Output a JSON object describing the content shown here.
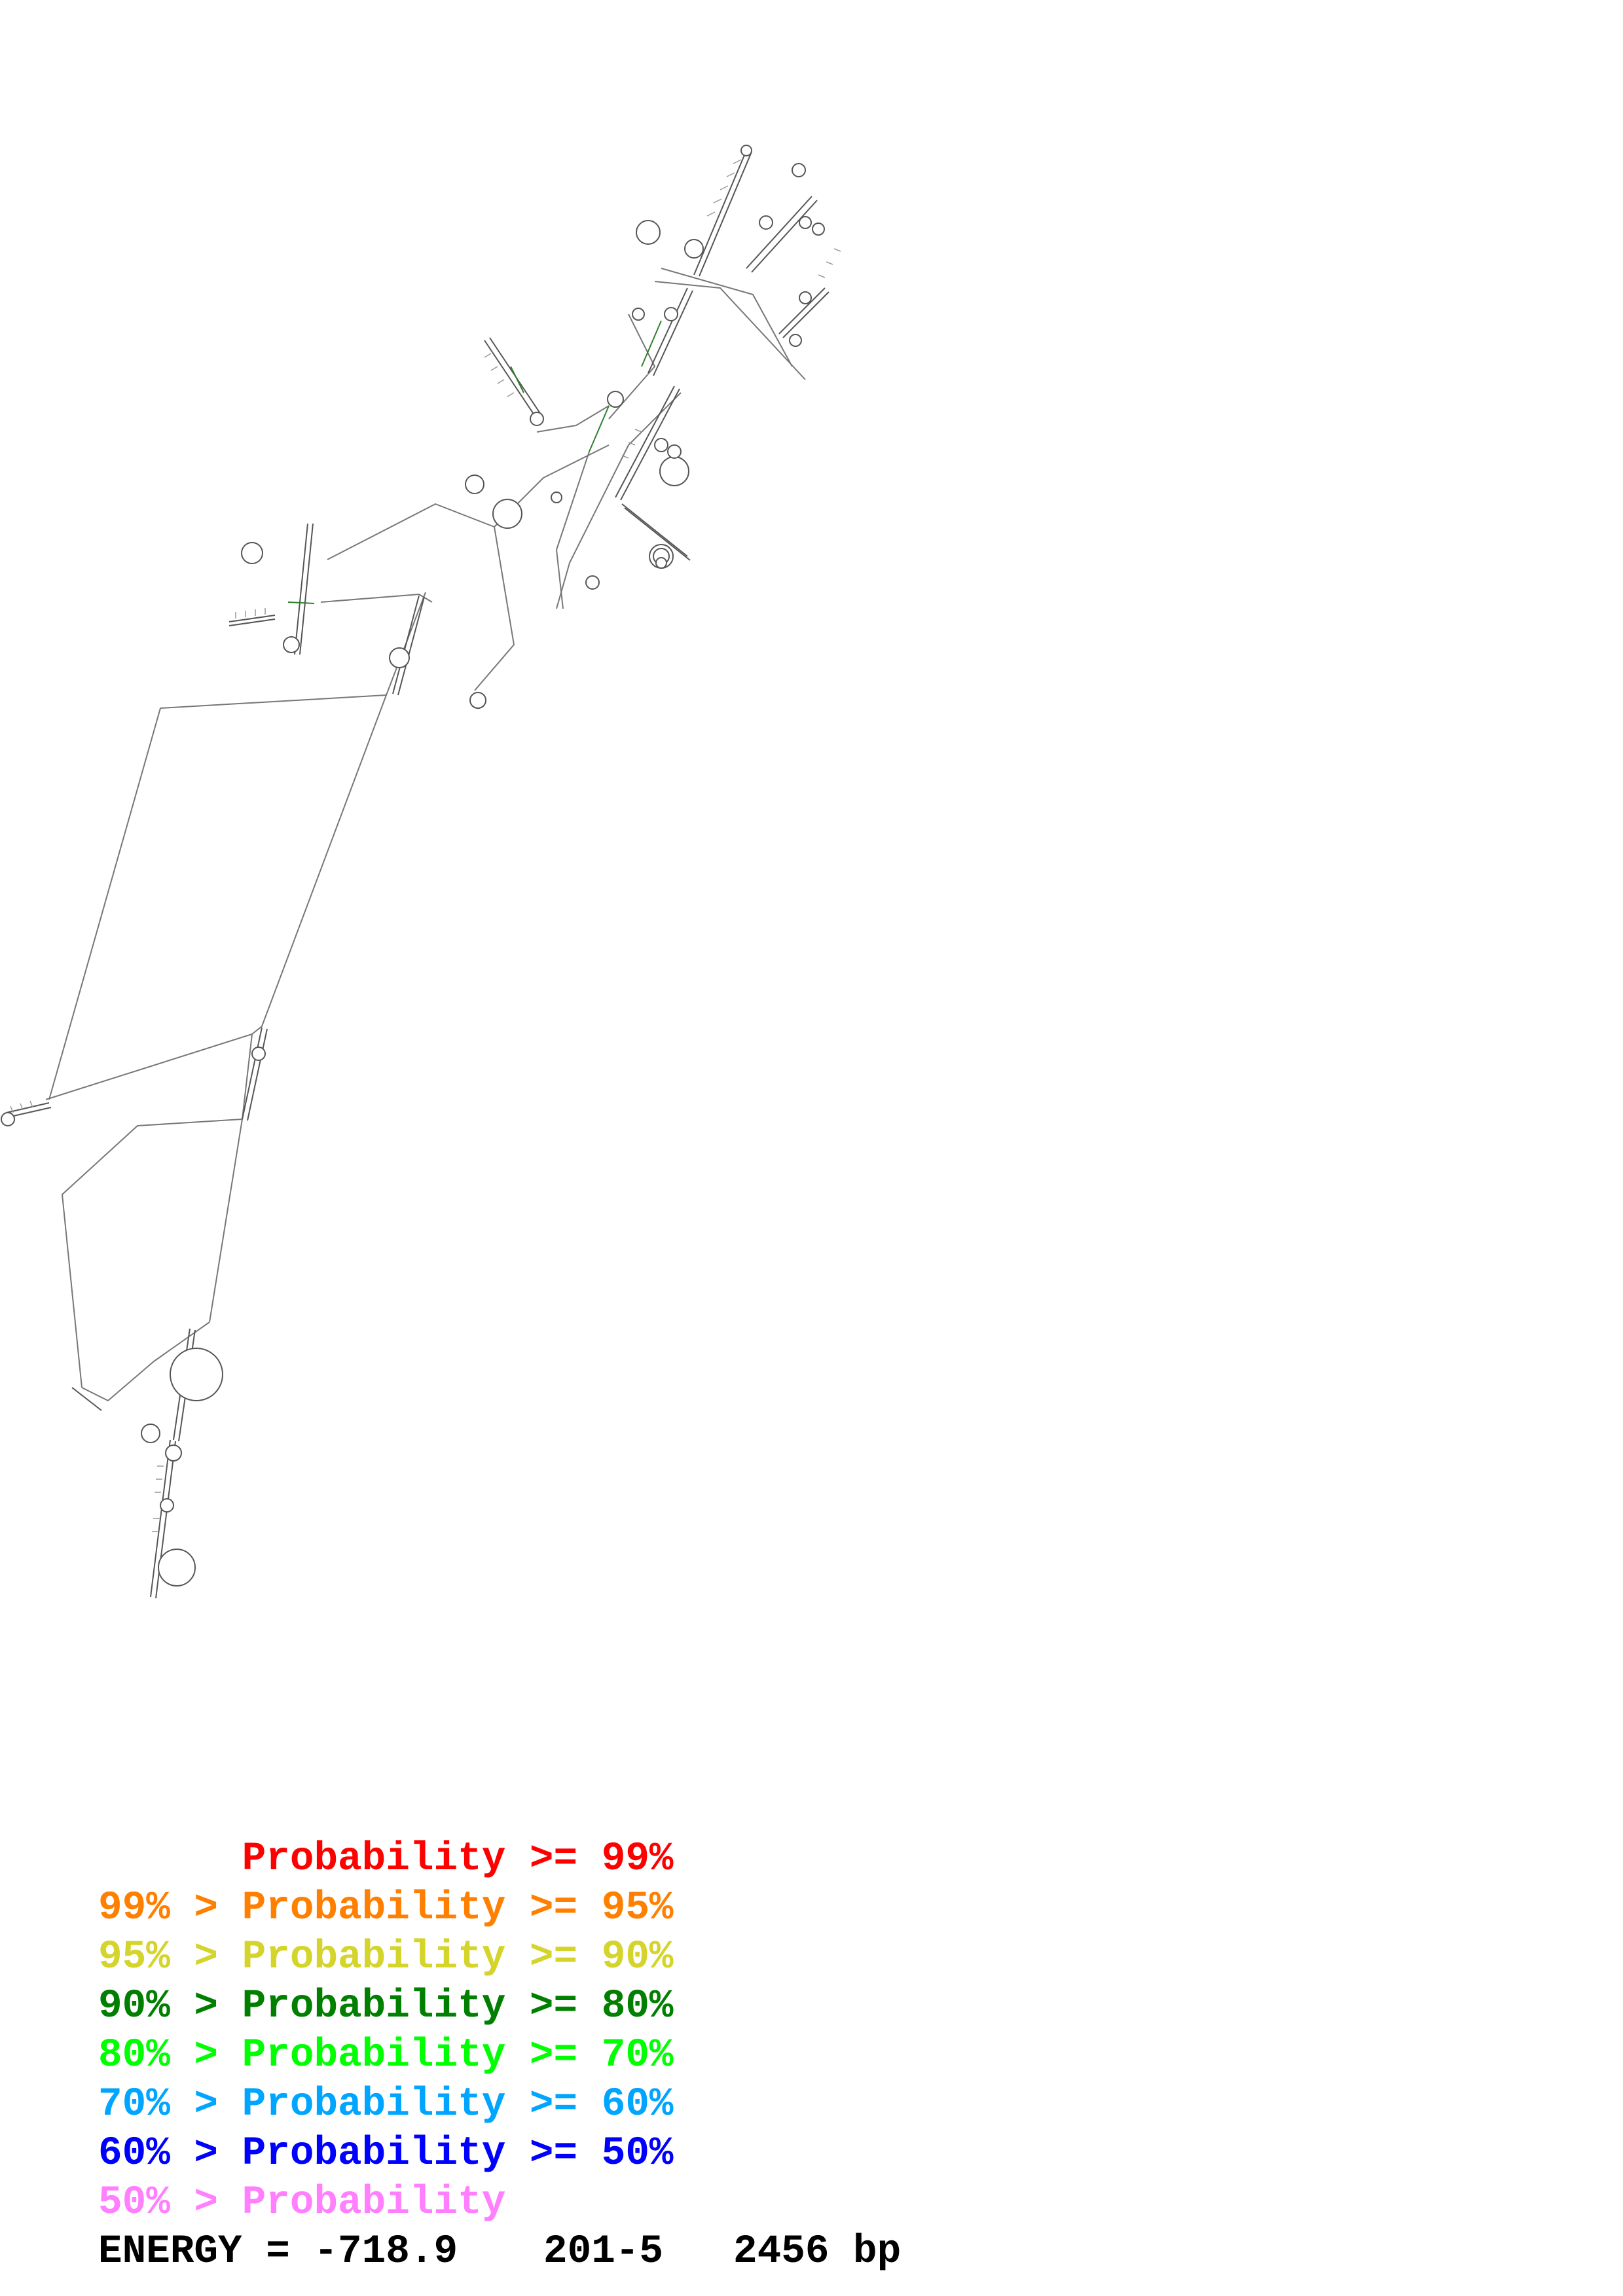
{
  "diagram": {
    "legend": [
      {
        "text": "      Probability >= 99%",
        "color": "#ff0000"
      },
      {
        "text": "99% > Probability >= 95%",
        "color": "#ff7f00"
      },
      {
        "text": "95% > Probability >= 90%",
        "color": "#d4d42a"
      },
      {
        "text": "90% > Probability >= 80%",
        "color": "#007f00"
      },
      {
        "text": "80% > Probability >= 70%",
        "color": "#00ff00"
      },
      {
        "text": "70% > Probability >= 60%",
        "color": "#00a5ff"
      },
      {
        "text": "60% > Probability >= 50%",
        "color": "#0000ff"
      },
      {
        "text": "50% > Probability",
        "color": "#ff7fff"
      }
    ],
    "footer": {
      "energy_label": "ENERGY = -718.9",
      "region": "201-5",
      "length": "2456 bp"
    }
  }
}
